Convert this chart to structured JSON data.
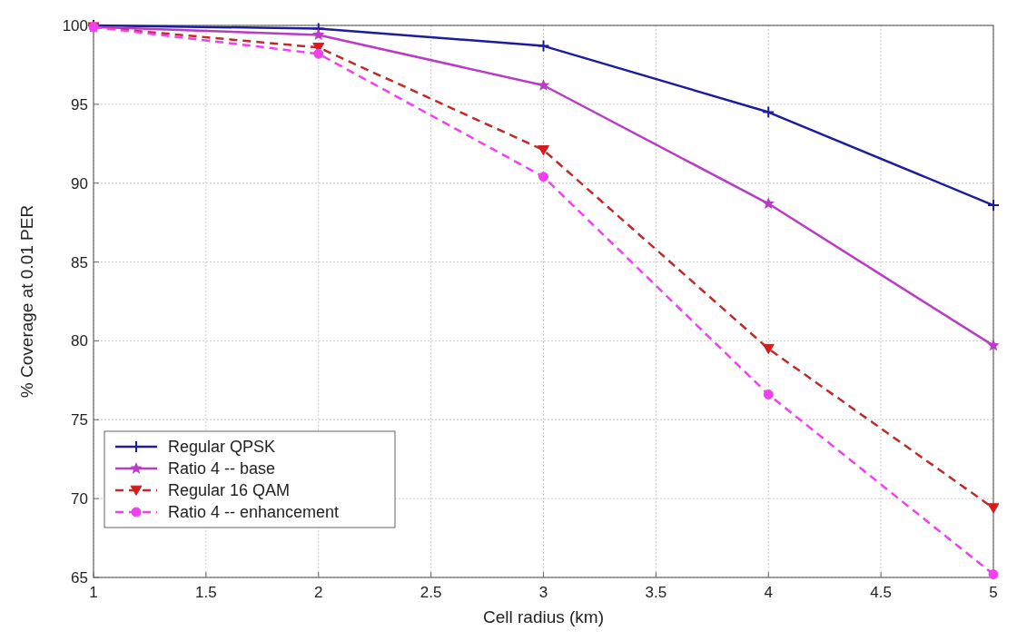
{
  "chart_data": {
    "type": "line",
    "xlabel": "Cell radius (km)",
    "ylabel": "% Coverage at 0.01 PER",
    "x": [
      1,
      2,
      3,
      4,
      5
    ],
    "series": [
      {
        "name": "Regular QPSK",
        "color": "#1c1c9c",
        "values": [
          100,
          99.8,
          98.7,
          94.5,
          88.6
        ],
        "marker": "cross",
        "line_style": "solid"
      },
      {
        "name": "Ratio 4 -- base",
        "color": "#b83cc4",
        "values": [
          99.9,
          99.4,
          96.2,
          88.7,
          79.7
        ],
        "marker": "star",
        "line_style": "solid"
      },
      {
        "name": "Regular 16 QAM",
        "color": "#c02a2a",
        "values": [
          99.9,
          98.6,
          92.1,
          79.5,
          69.4
        ],
        "marker": "triangle",
        "line_style": "dashed"
      },
      {
        "name": "Ratio 4 -- enhancement",
        "color": "#f040f0",
        "values": [
          99.9,
          98.2,
          90.4,
          76.6,
          65.2
        ],
        "marker": "circle",
        "line_style": "dashed"
      }
    ],
    "xlim": [
      1,
      5
    ],
    "xticks": [
      1,
      1.5,
      2,
      2.5,
      3,
      3.5,
      4,
      4.5,
      5
    ],
    "ylim": [
      65,
      100
    ],
    "yticks": [
      65,
      70,
      75,
      80,
      85,
      90,
      95,
      100
    ],
    "grid": true,
    "legend": "bottom left"
  }
}
